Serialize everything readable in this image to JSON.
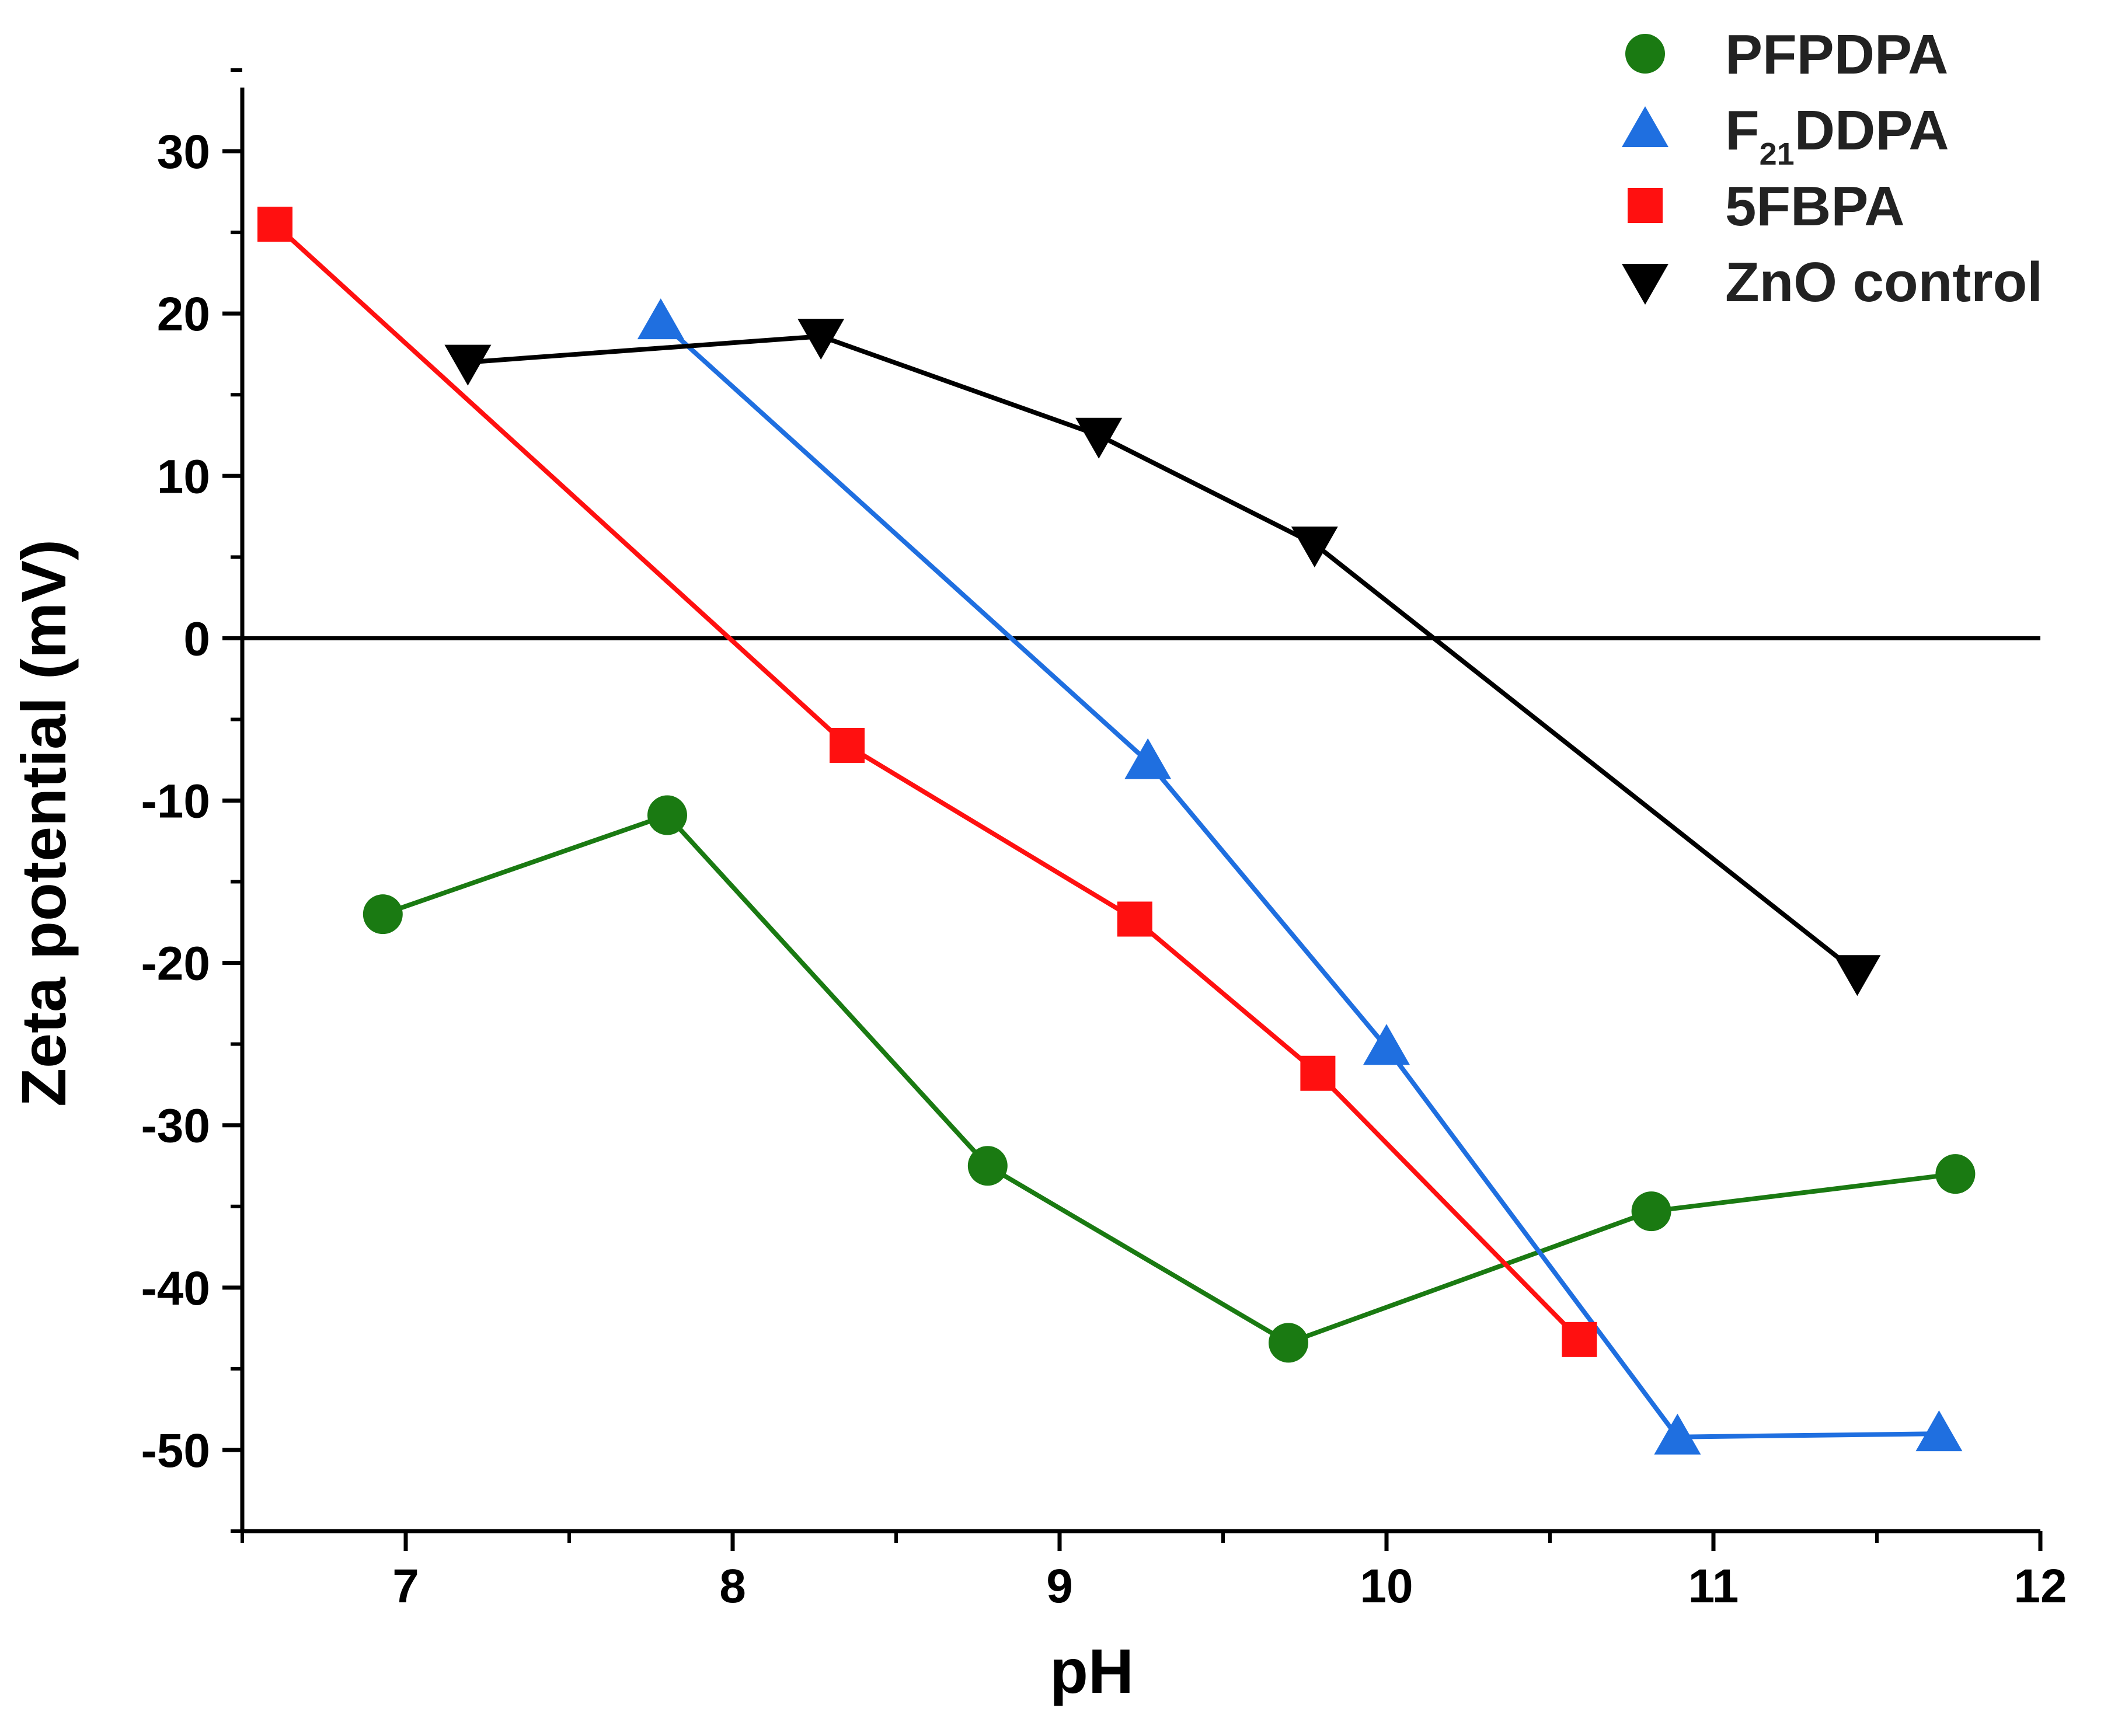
{
  "chart_data": {
    "type": "line",
    "xlabel": "pH",
    "ylabel": "Zeta potential (mV)",
    "xlim": [
      6.5,
      12
    ],
    "ylim": [
      -55,
      35
    ],
    "xticks": [
      7,
      8,
      9,
      10,
      11,
      12
    ],
    "yticks": [
      30,
      20,
      10,
      0,
      -10,
      -20,
      -30,
      -40,
      -50
    ],
    "xtick_labels": [
      "7",
      "8",
      "9",
      "10",
      "11",
      "12"
    ],
    "ytick_labels": [
      "30",
      "20",
      "10",
      "0",
      "-10",
      "-20",
      "-30",
      "-40",
      "-50"
    ],
    "zero_line": true,
    "legend_position": "top-right",
    "series": [
      {
        "name": "PFPDPA",
        "legend_label": {
          "base": "PFPDPA",
          "sub": "",
          "rest": ""
        },
        "color": "#1a7a12",
        "marker": "circle",
        "x": [
          6.93,
          7.8,
          8.78,
          9.7,
          10.81,
          11.74
        ],
        "y": [
          -17.0,
          -10.9,
          -32.5,
          -43.4,
          -35.3,
          -33.0
        ]
      },
      {
        "name": "F21DDPA",
        "legend_label": {
          "base": "F",
          "sub": "21",
          "rest": "DDPA"
        },
        "color": "#1f6fe0",
        "marker": "triangle-up",
        "x": [
          7.78,
          9.27,
          10.0,
          10.89,
          11.69
        ],
        "y": [
          19.5,
          -7.6,
          -25.2,
          -49.2,
          -49.0
        ]
      },
      {
        "name": "5FBPA",
        "legend_label": {
          "base": "5FBPA",
          "sub": "",
          "rest": ""
        },
        "color": "#ff1010",
        "marker": "square",
        "x": [
          6.6,
          8.35,
          9.23,
          9.79,
          10.59
        ],
        "y": [
          25.5,
          -6.6,
          -17.3,
          -26.8,
          -43.2
        ]
      },
      {
        "name": "ZnO control",
        "legend_label": {
          "base": "ZnO control",
          "sub": "",
          "rest": ""
        },
        "color": "#000000",
        "marker": "triangle-down",
        "x": [
          7.19,
          8.27,
          9.12,
          9.78,
          11.44
        ],
        "y": [
          17.0,
          18.6,
          12.5,
          5.8,
          -20.6
        ]
      }
    ]
  }
}
